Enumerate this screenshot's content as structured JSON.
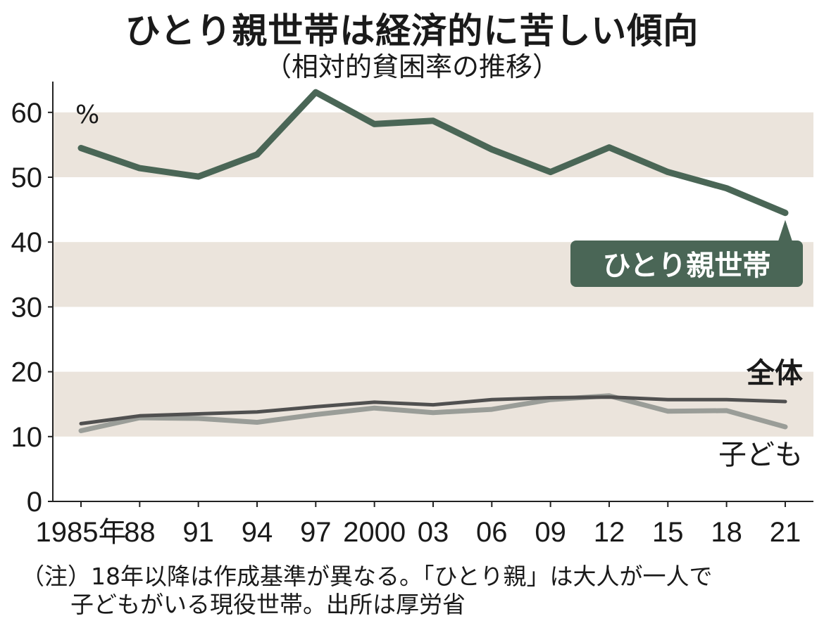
{
  "header": {
    "title": "ひとり親世帯は経済的に苦しい傾向",
    "subtitle": "（相対的貧困率の推移）"
  },
  "colors": {
    "band": "#ebe4dc",
    "single_parent": "#4a6656",
    "overall": "#505050",
    "children": "#9a9d98",
    "axis": "#222222"
  },
  "chart_data": {
    "type": "line",
    "title": "ひとり親世帯は経済的に苦しい傾向",
    "subtitle": "（相対的貧困率の推移）",
    "ylabel": "%",
    "ylim": [
      0,
      65
    ],
    "yticks": [
      0,
      10,
      20,
      30,
      40,
      50,
      60
    ],
    "ytick_labels": [
      "0",
      "10",
      "20",
      "30",
      "40",
      "50",
      "60"
    ],
    "x": [
      1985,
      1988,
      1991,
      1994,
      1997,
      2000,
      2003,
      2006,
      2009,
      2012,
      2015,
      2018,
      2021
    ],
    "xtick_labels": [
      "1985年",
      "88",
      "91",
      "94",
      "97",
      "2000",
      "03",
      "06",
      "09",
      "12",
      "15",
      "18",
      "21"
    ],
    "series": [
      {
        "name": "ひとり親世帯",
        "values": [
          54.5,
          51.4,
          50.1,
          53.5,
          63.1,
          58.2,
          58.7,
          54.3,
          50.8,
          54.6,
          50.8,
          48.3,
          44.5
        ]
      },
      {
        "name": "全体",
        "values": [
          12.0,
          13.2,
          13.5,
          13.8,
          14.6,
          15.3,
          14.9,
          15.7,
          16.0,
          16.1,
          15.7,
          15.7,
          15.4
        ]
      },
      {
        "name": "子ども",
        "values": [
          10.9,
          12.9,
          12.8,
          12.2,
          13.4,
          14.4,
          13.7,
          14.2,
          15.7,
          16.3,
          13.9,
          14.0,
          11.5
        ]
      }
    ],
    "bands": [
      [
        10,
        20
      ],
      [
        30,
        40
      ],
      [
        50,
        60
      ]
    ],
    "grid": false
  },
  "note": {
    "line1": "（注）18年以降は作成基準が異なる。「ひとり親」は大人が一人で",
    "line2": "子どもがいる現役世帯。出所は厚労省"
  }
}
